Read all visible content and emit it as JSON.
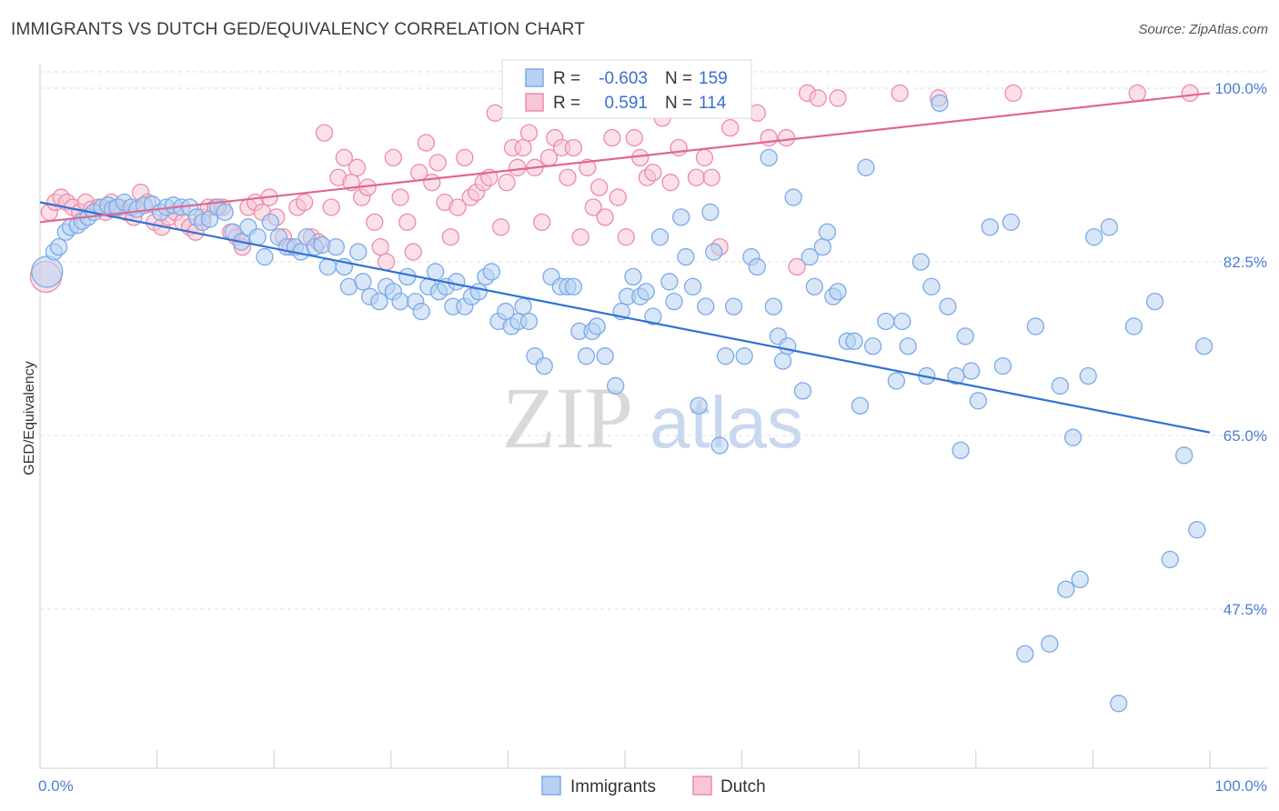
{
  "title": "IMMIGRANTS VS DUTCH GED/EQUIVALENCY CORRELATION CHART",
  "source": "Source: ZipAtlas.com",
  "watermark": {
    "zip": "ZIP",
    "atlas": "atlas"
  },
  "legend": {
    "rows": [
      {
        "r_label": "R =",
        "r_value": "-0.603",
        "n_label": "N =",
        "n_value": "159",
        "color": "#7aaae8",
        "fill": "#b8d1f3"
      },
      {
        "r_label": "R =",
        "r_value": "0.591",
        "n_label": "N =",
        "n_value": "114",
        "color": "#ee8aab",
        "fill": "#f8c6d6"
      }
    ]
  },
  "bottom_legend": [
    "Immigrants",
    "Dutch"
  ],
  "chart_data": {
    "type": "scatter",
    "xlabel": "",
    "ylabel": "GED/Equivalency",
    "xlim": [
      0,
      100
    ],
    "ylim": [
      30,
      101
    ],
    "x_ticks": [
      "0.0%",
      "100.0%"
    ],
    "y_ticks": [
      {
        "value": 100,
        "label": "100.0%"
      },
      {
        "value": 82.5,
        "label": "82.5%"
      },
      {
        "value": 65,
        "label": "65.0%"
      },
      {
        "value": 47.5,
        "label": "47.5%"
      }
    ],
    "grid": true,
    "legend_position": "top-center",
    "series": [
      {
        "name": "Immigrants",
        "color": "#7aaae8",
        "fill": "#b8d1f3",
        "trend_color": "#2f72d6",
        "trend": [
          [
            0,
            88.5
          ],
          [
            100,
            65.3
          ]
        ],
        "points": [
          [
            0.6,
            81.5
          ],
          [
            1.2,
            83.5
          ],
          [
            1.6,
            84
          ],
          [
            2.2,
            85.5
          ],
          [
            2.6,
            86
          ],
          [
            3.2,
            86.2
          ],
          [
            3.6,
            86.6
          ],
          [
            4.1,
            87
          ],
          [
            4.6,
            87.5
          ],
          [
            5.3,
            88
          ],
          [
            5.8,
            88.2
          ],
          [
            6.2,
            87.8
          ],
          [
            6.6,
            88
          ],
          [
            7.2,
            88.5
          ],
          [
            7.8,
            88
          ],
          [
            8.3,
            87.8
          ],
          [
            8.9,
            88.2
          ],
          [
            9.6,
            88.3
          ],
          [
            10.3,
            87.5
          ],
          [
            10.8,
            88
          ],
          [
            11.4,
            88.2
          ],
          [
            12.1,
            88
          ],
          [
            12.8,
            88
          ],
          [
            13.4,
            87
          ],
          [
            13.9,
            86.5
          ],
          [
            14.5,
            86.8
          ],
          [
            15.2,
            88
          ],
          [
            15.8,
            87.5
          ],
          [
            16.5,
            85.5
          ],
          [
            17.2,
            84.5
          ],
          [
            17.8,
            86
          ],
          [
            18.6,
            85
          ],
          [
            19.2,
            83
          ],
          [
            19.7,
            86.5
          ],
          [
            20.4,
            85
          ],
          [
            21.1,
            84
          ],
          [
            21.8,
            84
          ],
          [
            22.3,
            83.5
          ],
          [
            22.8,
            85
          ],
          [
            23.5,
            84
          ],
          [
            24.1,
            84.2
          ],
          [
            24.6,
            82
          ],
          [
            25.3,
            84
          ],
          [
            26,
            82
          ],
          [
            26.4,
            80
          ],
          [
            27.2,
            83.5
          ],
          [
            27.6,
            80.5
          ],
          [
            28.2,
            79
          ],
          [
            29,
            78.5
          ],
          [
            29.6,
            80
          ],
          [
            30.2,
            79.5
          ],
          [
            30.8,
            78.5
          ],
          [
            31.4,
            81
          ],
          [
            32.1,
            78.5
          ],
          [
            32.6,
            77.5
          ],
          [
            33.2,
            80
          ],
          [
            33.8,
            81.5
          ],
          [
            34.1,
            79.5
          ],
          [
            34.7,
            80
          ],
          [
            35.3,
            78
          ],
          [
            35.6,
            80.5
          ],
          [
            36.3,
            78
          ],
          [
            36.9,
            79
          ],
          [
            37.5,
            79.5
          ],
          [
            38.1,
            81
          ],
          [
            38.6,
            81.5
          ],
          [
            39.2,
            76.5
          ],
          [
            39.8,
            77.5
          ],
          [
            40.3,
            76
          ],
          [
            40.9,
            76.5
          ],
          [
            41.3,
            78
          ],
          [
            41.8,
            76.5
          ],
          [
            42.3,
            73
          ],
          [
            43.1,
            72
          ],
          [
            43.7,
            81
          ],
          [
            44.5,
            80
          ],
          [
            45.1,
            80
          ],
          [
            45.6,
            80
          ],
          [
            46.1,
            75.5
          ],
          [
            46.7,
            73
          ],
          [
            47.2,
            75.5
          ],
          [
            47.6,
            76
          ],
          [
            48.3,
            73
          ],
          [
            49.2,
            70
          ],
          [
            49.7,
            77.5
          ],
          [
            50.2,
            79
          ],
          [
            50.7,
            81
          ],
          [
            51.3,
            79
          ],
          [
            51.8,
            79.5
          ],
          [
            52.4,
            77
          ],
          [
            53,
            85
          ],
          [
            53.8,
            80.5
          ],
          [
            54.2,
            78.5
          ],
          [
            54.8,
            87
          ],
          [
            55.2,
            83
          ],
          [
            55.8,
            80
          ],
          [
            56.3,
            68
          ],
          [
            56.9,
            78
          ],
          [
            57.3,
            87.5
          ],
          [
            57.6,
            83.5
          ],
          [
            58.1,
            64
          ],
          [
            58.6,
            73
          ],
          [
            59.3,
            78
          ],
          [
            60.2,
            73
          ],
          [
            60.8,
            83
          ],
          [
            61.3,
            82
          ],
          [
            62.3,
            93
          ],
          [
            62.7,
            78
          ],
          [
            63.1,
            75
          ],
          [
            63.5,
            72.5
          ],
          [
            63.9,
            74
          ],
          [
            64.4,
            89
          ],
          [
            65.2,
            69.5
          ],
          [
            65.8,
            83
          ],
          [
            66.2,
            80
          ],
          [
            66.9,
            84
          ],
          [
            67.3,
            85.5
          ],
          [
            67.8,
            79
          ],
          [
            68.2,
            79.5
          ],
          [
            69,
            74.5
          ],
          [
            69.6,
            74.5
          ],
          [
            70.1,
            68
          ],
          [
            70.6,
            92
          ],
          [
            71.2,
            74
          ],
          [
            72.3,
            76.5
          ],
          [
            73.2,
            70.5
          ],
          [
            73.7,
            76.5
          ],
          [
            74.2,
            74
          ],
          [
            75.3,
            82.5
          ],
          [
            75.8,
            71
          ],
          [
            76.2,
            80
          ],
          [
            76.9,
            98.5
          ],
          [
            77.6,
            78
          ],
          [
            78.3,
            71
          ],
          [
            78.7,
            63.5
          ],
          [
            79.1,
            75
          ],
          [
            79.6,
            71.5
          ],
          [
            80.2,
            68.5
          ],
          [
            81.2,
            86
          ],
          [
            82.3,
            72
          ],
          [
            83,
            86.5
          ],
          [
            84.2,
            43
          ],
          [
            85.1,
            76
          ],
          [
            86.3,
            44
          ],
          [
            87.2,
            70
          ],
          [
            87.7,
            49.5
          ],
          [
            88.3,
            64.8
          ],
          [
            88.9,
            50.5
          ],
          [
            89.6,
            71
          ],
          [
            90.1,
            85
          ],
          [
            91.4,
            86
          ],
          [
            92.2,
            38
          ],
          [
            93.5,
            76
          ],
          [
            95.3,
            78.5
          ],
          [
            96.6,
            52.5
          ],
          [
            97.8,
            63
          ],
          [
            98.9,
            55.5
          ],
          [
            99.5,
            74
          ]
        ]
      },
      {
        "name": "Dutch",
        "color": "#ee8aab",
        "fill": "#f8c6d6",
        "trend_color": "#e06690",
        "trend": [
          [
            0,
            86.5
          ],
          [
            100,
            99.5
          ]
        ],
        "points": [
          [
            0.5,
            81
          ],
          [
            0.8,
            87.5
          ],
          [
            1.3,
            88.5
          ],
          [
            1.8,
            89
          ],
          [
            2.3,
            88.5
          ],
          [
            2.8,
            88
          ],
          [
            3.4,
            87.5
          ],
          [
            3.9,
            88.5
          ],
          [
            4.4,
            87.8
          ],
          [
            5,
            88
          ],
          [
            5.6,
            87.5
          ],
          [
            6.1,
            88.5
          ],
          [
            6.8,
            88
          ],
          [
            7.4,
            87.5
          ],
          [
            8,
            87
          ],
          [
            8.6,
            89.5
          ],
          [
            9.2,
            88.5
          ],
          [
            9.8,
            86.5
          ],
          [
            10.4,
            86
          ],
          [
            11,
            87
          ],
          [
            11.6,
            87.5
          ],
          [
            12.2,
            86.5
          ],
          [
            12.8,
            86
          ],
          [
            13.3,
            85.5
          ],
          [
            13.9,
            87
          ],
          [
            14.4,
            88
          ],
          [
            15,
            88
          ],
          [
            15.6,
            88
          ],
          [
            16.3,
            85.5
          ],
          [
            16.8,
            85
          ],
          [
            17.3,
            84
          ],
          [
            17.8,
            88
          ],
          [
            18.4,
            88.5
          ],
          [
            19,
            87.5
          ],
          [
            19.6,
            89
          ],
          [
            20.2,
            87
          ],
          [
            20.8,
            85
          ],
          [
            21.4,
            84
          ],
          [
            22,
            88
          ],
          [
            22.6,
            88.5
          ],
          [
            23.2,
            85
          ],
          [
            23.8,
            84.5
          ],
          [
            24.3,
            95.5
          ],
          [
            24.9,
            88
          ],
          [
            25.5,
            91
          ],
          [
            26,
            93
          ],
          [
            26.6,
            90.5
          ],
          [
            27.1,
            92
          ],
          [
            27.5,
            89
          ],
          [
            28,
            90
          ],
          [
            28.6,
            86.5
          ],
          [
            29.1,
            84
          ],
          [
            29.6,
            82.5
          ],
          [
            30.2,
            93
          ],
          [
            30.8,
            89
          ],
          [
            31.4,
            86.5
          ],
          [
            31.9,
            83.5
          ],
          [
            32.4,
            91.5
          ],
          [
            33,
            94.5
          ],
          [
            33.5,
            90.5
          ],
          [
            34,
            92.5
          ],
          [
            34.6,
            88.5
          ],
          [
            35.1,
            85
          ],
          [
            35.7,
            88
          ],
          [
            36.3,
            93
          ],
          [
            36.8,
            89
          ],
          [
            37.3,
            89.5
          ],
          [
            37.9,
            90.5
          ],
          [
            38.4,
            91
          ],
          [
            38.9,
            97.5
          ],
          [
            39.4,
            86
          ],
          [
            39.9,
            90.5
          ],
          [
            40.4,
            94
          ],
          [
            40.8,
            92
          ],
          [
            41.3,
            94
          ],
          [
            41.8,
            95.5
          ],
          [
            42.3,
            92
          ],
          [
            42.9,
            86.5
          ],
          [
            43.5,
            93
          ],
          [
            44,
            95
          ],
          [
            44.6,
            94
          ],
          [
            45.1,
            91
          ],
          [
            45.6,
            94
          ],
          [
            46.2,
            85
          ],
          [
            46.8,
            92
          ],
          [
            47.3,
            88
          ],
          [
            47.8,
            90
          ],
          [
            48.3,
            87
          ],
          [
            48.9,
            95
          ],
          [
            49.4,
            89
          ],
          [
            50.1,
            85
          ],
          [
            50.8,
            95
          ],
          [
            51.3,
            93
          ],
          [
            51.9,
            91
          ],
          [
            52.4,
            91.5
          ],
          [
            53.2,
            97
          ],
          [
            53.9,
            90.5
          ],
          [
            54.6,
            94
          ],
          [
            55.3,
            98
          ],
          [
            56.1,
            91
          ],
          [
            56.8,
            93
          ],
          [
            57.4,
            91
          ],
          [
            58.1,
            84
          ],
          [
            59,
            96
          ],
          [
            61.3,
            97.5
          ],
          [
            62.3,
            95
          ],
          [
            63.8,
            95
          ],
          [
            64.7,
            82
          ],
          [
            65.6,
            99.5
          ],
          [
            66.5,
            99
          ],
          [
            68.2,
            99
          ],
          [
            73.5,
            99.5
          ],
          [
            76.8,
            99
          ],
          [
            83.2,
            99.5
          ],
          [
            93.8,
            99.5
          ],
          [
            98.3,
            99.5
          ]
        ]
      }
    ]
  }
}
